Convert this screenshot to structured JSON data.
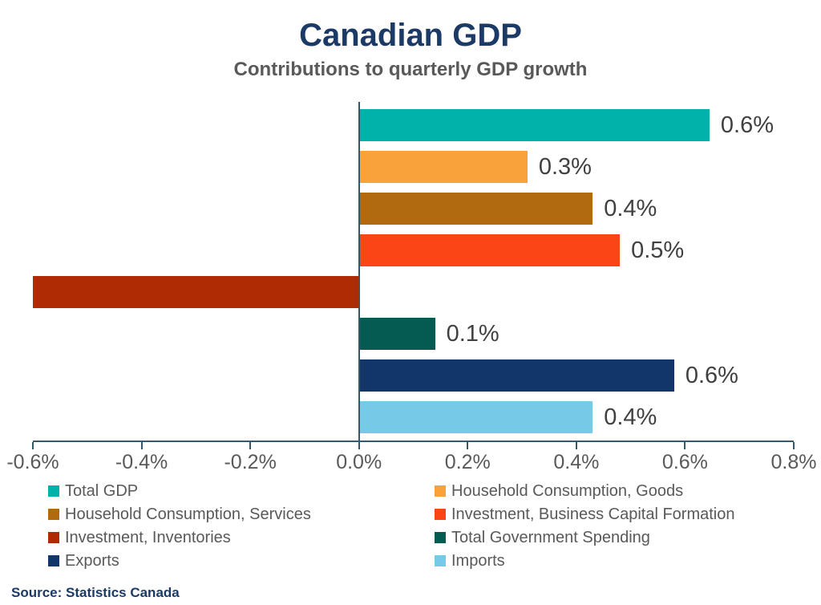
{
  "header": {
    "title": "Canadian GDP",
    "subtitle": "Contributions to quarterly GDP growth"
  },
  "source": "Source: Statistics Canada",
  "text_colors": {
    "title": "#1C3A66",
    "subtitle": "#595959",
    "data_label": "#404040",
    "tick_label": "#595959",
    "legend_label": "#595959",
    "source": "#1C3A66"
  },
  "chart_data": {
    "type": "bar",
    "orientation": "horizontal",
    "title": "Canadian GDP",
    "subtitle": "Contributions to quarterly GDP growth",
    "xlabel": "",
    "ylabel": "",
    "values_unit": "percent",
    "xlim": [
      -0.6,
      0.8
    ],
    "grid": false,
    "legend_position": "bottom",
    "axis_color": "#35596B",
    "categories": [
      "Total GDP",
      "Household Consumption, Goods",
      "Household Consumption, Services",
      "Investment, Business Capital Formation",
      "Investment, Inventories",
      "Total Government Spending",
      "Exports",
      "Imports"
    ],
    "values": [
      0.645,
      0.31,
      0.43,
      0.48,
      -0.6,
      0.14,
      0.58,
      0.43
    ],
    "data_labels": [
      "0.6%",
      "0.3%",
      "0.4%",
      "0.5%",
      "",
      "0.1%",
      "0.6%",
      "0.4%"
    ],
    "bar_colors": [
      "#00B2A9",
      "#F9A13B",
      "#B26A10",
      "#FA4616",
      "#AE2B03",
      "#055B52",
      "#133668",
      "#76CAE8"
    ],
    "x_ticks": [
      {
        "value": -0.6,
        "label": "-0.6%"
      },
      {
        "value": -0.4,
        "label": "-0.4%"
      },
      {
        "value": -0.2,
        "label": "-0.2%"
      },
      {
        "value": 0.0,
        "label": "0.0%"
      },
      {
        "value": 0.2,
        "label": "0.2%"
      },
      {
        "value": 0.4,
        "label": "0.4%"
      },
      {
        "value": 0.6,
        "label": "0.6%"
      },
      {
        "value": 0.8,
        "label": "0.8%"
      }
    ]
  }
}
